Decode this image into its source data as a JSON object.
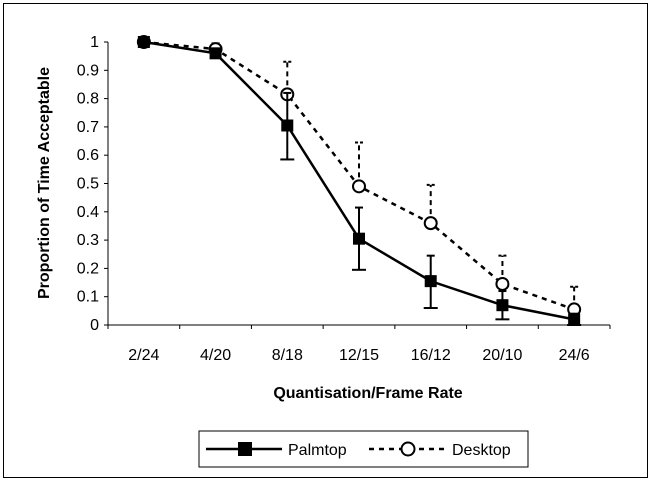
{
  "chart_data": {
    "type": "line",
    "xlabel": "Quantisation/Frame Rate",
    "ylabel": "Proportion of Time Acceptable",
    "categories": [
      "2/24",
      "4/20",
      "8/18",
      "12/15",
      "16/12",
      "20/10",
      "24/6"
    ],
    "ylim": [
      0,
      1
    ],
    "yticks": [
      "0",
      "0.1",
      "0.2",
      "0.3",
      "0.4",
      "0.5",
      "0.6",
      "0.7",
      "0.8",
      "0.9",
      "1"
    ],
    "grid": false,
    "legend_position": "bottom",
    "series": [
      {
        "name": "Palmtop",
        "values": [
          1.0,
          0.96,
          0.705,
          0.305,
          0.155,
          0.07,
          0.02
        ],
        "error_low": [
          1.0,
          0.96,
          0.585,
          0.195,
          0.06,
          0.02,
          0.0
        ],
        "error_high": [
          1.0,
          0.96,
          0.82,
          0.415,
          0.245,
          0.12,
          0.04
        ],
        "line_style": "solid",
        "marker": "filled-square",
        "color": "#000000"
      },
      {
        "name": "Desktop",
        "values": [
          1.0,
          0.975,
          0.815,
          0.49,
          0.36,
          0.145,
          0.055
        ],
        "error_low": [
          1.0,
          0.975,
          0.815,
          0.49,
          0.36,
          0.145,
          0.055
        ],
        "error_high": [
          1.0,
          0.995,
          0.93,
          0.645,
          0.495,
          0.245,
          0.135
        ],
        "line_style": "dashed",
        "marker": "open-circle",
        "color": "#000000"
      }
    ]
  }
}
